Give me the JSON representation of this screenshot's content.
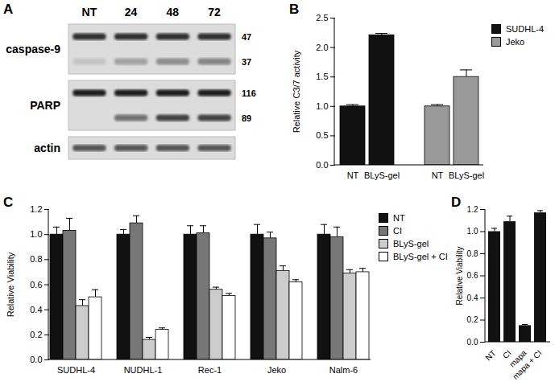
{
  "blot": {
    "title": "A",
    "lanes": [
      "NT",
      "24",
      "48",
      "72"
    ],
    "blots": [
      {
        "label": "caspase-9",
        "bands": [
          {
            "mw": 47,
            "intensity": [
              0.9,
              0.9,
              0.9,
              0.9
            ]
          },
          {
            "mw": 37,
            "intensity": [
              0.12,
              0.3,
              0.4,
              0.45
            ]
          }
        ]
      },
      {
        "label": "PARP",
        "bands": [
          {
            "mw": 116,
            "intensity": [
              1,
              1,
              1,
              1
            ]
          },
          {
            "mw": 89,
            "intensity": [
              0,
              0.55,
              0.8,
              0.8
            ]
          }
        ]
      },
      {
        "label": "actin",
        "bands": [
          {
            "intensity": [
              0.7,
              0.7,
              0.7,
              0.7
            ]
          }
        ]
      }
    ]
  },
  "chart_data": [
    {
      "type": "bar",
      "title": "B",
      "y_label": "Relative C3/7 activity",
      "categories": [
        "NT",
        "BLyS-gel"
      ],
      "series": [
        {
          "name": "SUDHL-4",
          "color": "#111111",
          "values": [
            1.0,
            2.21
          ],
          "errors": [
            0.03,
            0.03
          ]
        },
        {
          "name": "Jeko",
          "color": "#999999",
          "values": [
            1.0,
            1.5
          ],
          "errors": [
            0.03,
            0.12
          ]
        }
      ],
      "ylim": [
        0,
        2.5
      ],
      "yticks": [
        {
          "value": 0,
          "label": "0.0"
        },
        {
          "value": 0.5,
          "label": "0.5"
        },
        {
          "value": 1,
          "label": "1.0"
        },
        {
          "value": 1.5,
          "label": "1.5"
        },
        {
          "value": 2,
          "label": "2.0"
        },
        {
          "value": 2.5,
          "label": "2.5"
        }
      ],
      "legend": "right"
    },
    {
      "type": "bar",
      "title": "C",
      "y_label": "Relative Viability",
      "categories": [
        "SUDHL-4",
        "NUDHL-1",
        "Rec-1",
        "Jeko",
        "Nalm-6"
      ],
      "series": [
        {
          "name": "NT",
          "color": "#111111",
          "values": [
            1.0,
            1.0,
            1.0,
            1.0,
            1.0
          ],
          "errors": [
            0.06,
            0.04,
            0.07,
            0.08,
            0.08
          ]
        },
        {
          "name": "CI",
          "color": "#777777",
          "values": [
            1.03,
            1.09,
            1.01,
            0.97,
            0.98
          ],
          "errors": [
            0.1,
            0.06,
            0.06,
            0.05,
            0.08
          ]
        },
        {
          "name": "BLyS-gel",
          "color": "#cccccc",
          "values": [
            0.43,
            0.16,
            0.56,
            0.71,
            0.69
          ],
          "errors": [
            0.05,
            0.02,
            0.02,
            0.04,
            0.03
          ]
        },
        {
          "name": "BLyS-gel + CI",
          "color": "#ffffff",
          "values": [
            0.5,
            0.24,
            0.51,
            0.62,
            0.7
          ],
          "errors": [
            0.06,
            0.015,
            0.02,
            0.02,
            0.03
          ]
        }
      ],
      "ylim": [
        0,
        1.2
      ],
      "yticks": [
        {
          "value": 0,
          "label": "0.0"
        },
        {
          "value": 0.2,
          "label": "0.2"
        },
        {
          "value": 0.4,
          "label": "0.4"
        },
        {
          "value": 0.6,
          "label": "0.6"
        },
        {
          "value": 0.8,
          "label": "0.8"
        },
        {
          "value": 1,
          "label": "1.0"
        },
        {
          "value": 1.2,
          "label": "1.2"
        }
      ],
      "legend": "right"
    },
    {
      "type": "bar",
      "title": "D",
      "y_label": "Relative Viability",
      "categories": [
        "NT",
        "CI",
        "mapa",
        "mapa + CI"
      ],
      "values": [
        1.0,
        1.09,
        0.15,
        1.17
      ],
      "errors": [
        0.03,
        0.05,
        0.01,
        0.02
      ],
      "color": "#111111",
      "ylim": [
        0,
        1.2
      ],
      "yticks": [
        {
          "value": 0,
          "label": "0.0"
        },
        {
          "value": 0.2,
          "label": "0.2"
        },
        {
          "value": 0.4,
          "label": "0.4"
        },
        {
          "value": 0.6,
          "label": "0.6"
        },
        {
          "value": 0.8,
          "label": "0.8"
        },
        {
          "value": 1,
          "label": "1.0"
        },
        {
          "value": 1.2,
          "label": "1.2"
        }
      ]
    }
  ]
}
